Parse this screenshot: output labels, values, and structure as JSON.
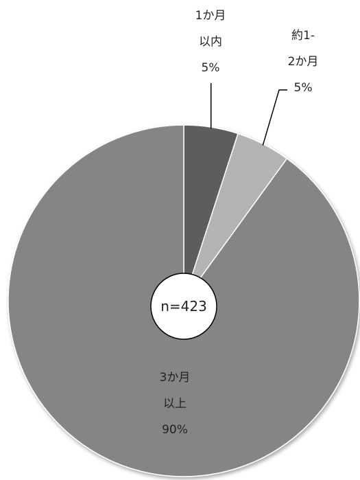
{
  "chart_data": {
    "type": "pie",
    "slices": [
      {
        "label_lines": [
          "1か月",
          "以内"
        ],
        "value": 5,
        "value_label": "5%",
        "color": "#5d5d5d"
      },
      {
        "label_lines": [
          "約1-",
          "2か月"
        ],
        "value": 5,
        "value_label": "5%",
        "color": "#b3b3b3"
      },
      {
        "label_lines": [
          "3か月",
          "以上"
        ],
        "value": 90,
        "value_label": "90%",
        "color": "#858585"
      }
    ],
    "center_label": "n=423",
    "start_angle": "12 o'clock",
    "direction": "clockwise",
    "legend": "none"
  }
}
